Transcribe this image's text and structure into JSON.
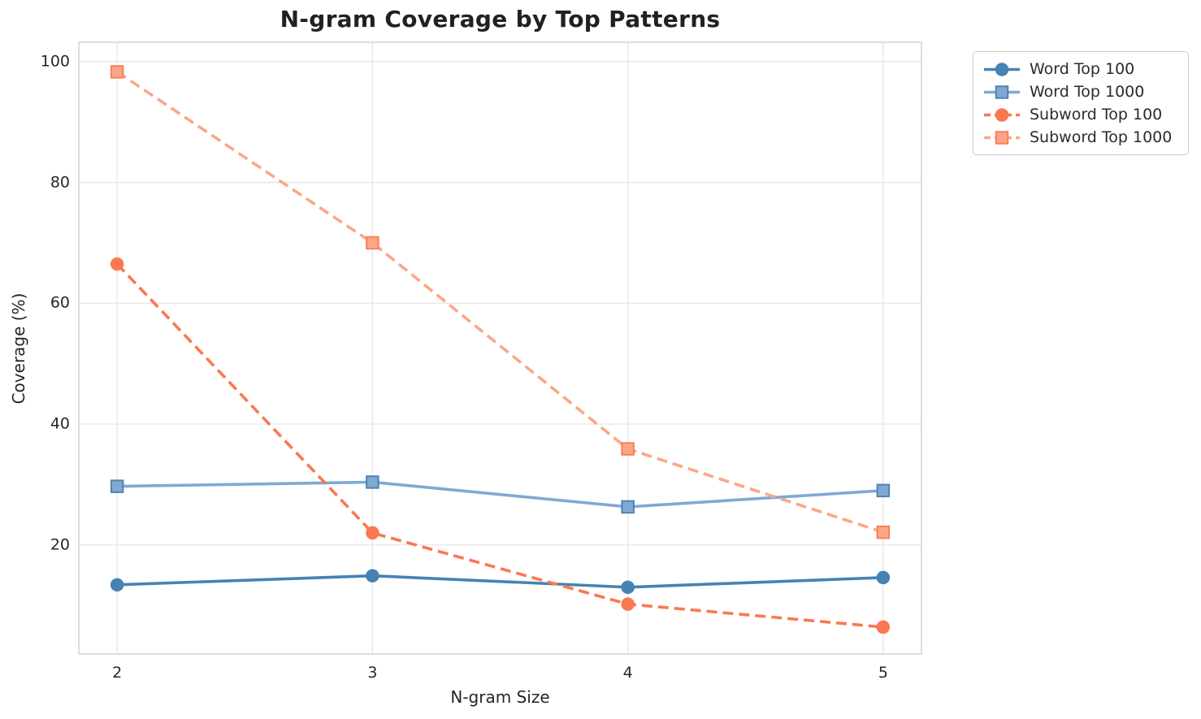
{
  "chart_data": {
    "type": "line",
    "title": "N-gram Coverage by Top Patterns",
    "xlabel": "N-gram Size",
    "ylabel": "Coverage (%)",
    "x": [
      2,
      3,
      4,
      5
    ],
    "xticks": [
      "2",
      "3",
      "4",
      "5"
    ],
    "yticks": [
      20,
      40,
      60,
      80,
      100
    ],
    "xlim": [
      1.85,
      5.15
    ],
    "ylim": [
      1.95,
      103.2
    ],
    "grid": true,
    "legend_position": "outside-upper-right",
    "series": [
      {
        "name": "Word Top 100",
        "values": [
          13.4,
          14.9,
          13.0,
          14.6
        ],
        "color": "#4682B4",
        "line_style": "solid",
        "marker": "circle",
        "marker_edge": "#4682B4"
      },
      {
        "name": "Word Top 1000",
        "values": [
          29.7,
          30.4,
          26.3,
          29.0
        ],
        "color": "#7FA9D3",
        "line_style": "solid",
        "marker": "square",
        "marker_edge": "#4F83B1"
      },
      {
        "name": "Subword Top 100",
        "values": [
          66.5,
          22.0,
          10.2,
          6.4
        ],
        "color": "#FA7850",
        "line_style": "dashed",
        "marker": "circle",
        "marker_edge": "#FA7850"
      },
      {
        "name": "Subword Top 1000",
        "values": [
          98.3,
          70.0,
          35.9,
          22.1
        ],
        "color": "#FDA687",
        "line_style": "dashed",
        "marker": "square",
        "marker_edge": "#FB7E57"
      }
    ]
  }
}
